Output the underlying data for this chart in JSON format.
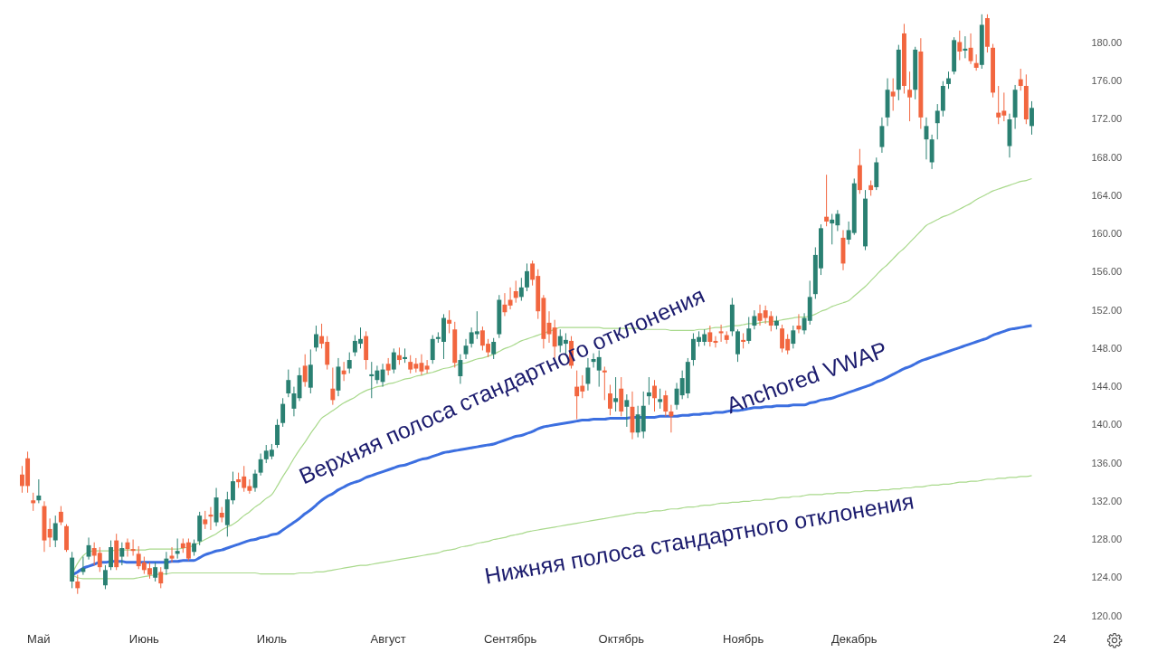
{
  "chart_data": {
    "type": "candlestick",
    "categories": [
      null,
      null,
      null,
      "Май",
      null,
      null,
      null,
      null,
      null,
      null,
      null,
      null,
      null,
      null,
      null,
      null,
      null,
      null,
      null,
      null,
      null,
      null,
      "Июнь",
      null,
      null,
      null,
      null,
      null,
      null,
      null,
      null,
      null,
      null,
      null,
      null,
      null,
      null,
      null,
      null,
      null,
      null,
      null,
      null,
      null,
      null,
      "Июль",
      null,
      null,
      null,
      null,
      null,
      null,
      null,
      null,
      null,
      null,
      null,
      null,
      null,
      null,
      null,
      null,
      null,
      null,
      null,
      null,
      "Август",
      null,
      null,
      null,
      null,
      null,
      null,
      null,
      null,
      null,
      null,
      null,
      null,
      null,
      null,
      null,
      null,
      null,
      null,
      null,
      null,
      null,
      "Сентябрь",
      null,
      null,
      null,
      null,
      null,
      null,
      null,
      null,
      null,
      null,
      null,
      null,
      null,
      null,
      null,
      null,
      null,
      null,
      null,
      "Октябрь",
      null,
      null,
      null,
      null,
      null,
      null,
      null,
      null,
      null,
      null,
      null,
      null,
      null,
      null,
      null,
      null,
      null,
      null,
      null,
      null,
      null,
      "Ноябрь",
      null,
      null,
      null,
      null,
      null,
      null,
      null,
      null,
      null,
      null,
      null,
      null,
      null,
      null,
      null,
      null,
      null,
      null,
      null,
      "Декабрь",
      null,
      null,
      null,
      null,
      null,
      null,
      null,
      null,
      null,
      null,
      null,
      null,
      null,
      null,
      null,
      null,
      null,
      null,
      null,
      null,
      null,
      null,
      null,
      null,
      null,
      null,
      null,
      null,
      null,
      null,
      null,
      null,
      null,
      null,
      null,
      null,
      "24",
      null,
      null,
      null
    ],
    "ohlc": [
      [
        134.8,
        135.7,
        132.9,
        133.6
      ],
      [
        136.5,
        137.2,
        132.9,
        133.6
      ],
      [
        132.1,
        132.9,
        131.0,
        131.8
      ],
      [
        132.1,
        134.3,
        131.8,
        132.6
      ],
      [
        131.5,
        132.0,
        126.7,
        127.9
      ],
      [
        129.1,
        130.2,
        127.2,
        128.2
      ],
      [
        127.9,
        130.5,
        127.2,
        129.7
      ],
      [
        130.9,
        131.5,
        129.5,
        129.8
      ],
      [
        129.4,
        129.6,
        126.7,
        126.9
      ],
      [
        123.6,
        126.7,
        122.9,
        126.1
      ],
      [
        123.6,
        124.3,
        122.3,
        122.9
      ],
      [
        124.6,
        126.2,
        124.3,
        125.0
      ],
      [
        126.2,
        128.2,
        125.9,
        127.4
      ],
      [
        127.1,
        127.7,
        125.3,
        126.3
      ],
      [
        126.6,
        127.2,
        124.6,
        125.1
      ],
      [
        123.2,
        125.3,
        122.8,
        124.8
      ],
      [
        125.1,
        127.9,
        124.8,
        127.2
      ],
      [
        127.9,
        128.6,
        124.8,
        125.1
      ],
      [
        126.2,
        127.7,
        125.3,
        127.1
      ],
      [
        127.7,
        128.1,
        126.2,
        127.0
      ],
      [
        127.0,
        128.0,
        126.3,
        126.8
      ],
      [
        126.5,
        127.3,
        124.9,
        125.2
      ],
      [
        125.6,
        126.2,
        124.4,
        124.8
      ],
      [
        125.0,
        125.6,
        123.9,
        124.3
      ],
      [
        124.0,
        125.6,
        123.6,
        125.1
      ],
      [
        124.6,
        125.1,
        122.9,
        123.4
      ],
      [
        124.9,
        126.7,
        124.3,
        126.0
      ],
      [
        126.3,
        127.2,
        125.6,
        126.0
      ],
      [
        126.5,
        128.1,
        126.0,
        126.8
      ],
      [
        127.6,
        128.1,
        126.6,
        127.1
      ],
      [
        127.7,
        128.1,
        125.8,
        126.0
      ],
      [
        126.7,
        128.0,
        126.3,
        127.6
      ],
      [
        127.8,
        130.9,
        127.4,
        130.5
      ],
      [
        130.1,
        131.0,
        129.1,
        129.6
      ],
      [
        130.6,
        131.4,
        129.0,
        130.4
      ],
      [
        129.8,
        133.4,
        129.4,
        132.4
      ],
      [
        130.8,
        131.4,
        129.8,
        130.3
      ],
      [
        129.5,
        133.0,
        128.3,
        132.2
      ],
      [
        132.1,
        135.1,
        131.7,
        134.1
      ],
      [
        134.3,
        135.0,
        133.4,
        134.0
      ],
      [
        134.6,
        135.7,
        133.0,
        133.4
      ],
      [
        133.6,
        134.3,
        132.8,
        133.1
      ],
      [
        133.4,
        135.3,
        133.0,
        134.9
      ],
      [
        135.0,
        137.0,
        134.7,
        136.4
      ],
      [
        136.4,
        137.9,
        136.0,
        137.3
      ],
      [
        136.7,
        138.0,
        136.4,
        137.4
      ],
      [
        137.9,
        140.6,
        137.6,
        140.0
      ],
      [
        140.2,
        142.8,
        139.8,
        142.2
      ],
      [
        143.3,
        145.8,
        142.9,
        144.7
      ],
      [
        141.7,
        144.0,
        140.9,
        143.3
      ],
      [
        142.8,
        146.0,
        142.5,
        145.2
      ],
      [
        146.2,
        147.4,
        144.0,
        144.5
      ],
      [
        143.9,
        147.9,
        143.3,
        146.3
      ],
      [
        148.1,
        150.4,
        147.7,
        149.5
      ],
      [
        149.3,
        150.6,
        148.0,
        148.5
      ],
      [
        148.7,
        149.3,
        145.8,
        146.3
      ],
      [
        143.8,
        146.0,
        142.1,
        142.6
      ],
      [
        143.6,
        147.0,
        143.0,
        146.1
      ],
      [
        145.7,
        146.6,
        144.6,
        145.3
      ],
      [
        145.9,
        147.6,
        145.4,
        146.8
      ],
      [
        147.6,
        149.4,
        147.2,
        148.8
      ],
      [
        148.5,
        150.2,
        148.0,
        149.0
      ],
      [
        149.3,
        149.8,
        145.8,
        146.8
      ],
      [
        145.1,
        146.6,
        142.8,
        145.3
      ],
      [
        144.7,
        146.2,
        144.3,
        145.7
      ],
      [
        144.5,
        146.4,
        144.0,
        145.8
      ],
      [
        146.4,
        147.0,
        145.2,
        145.7
      ],
      [
        145.8,
        148.0,
        145.4,
        147.6
      ],
      [
        147.3,
        148.1,
        146.3,
        146.8
      ],
      [
        146.9,
        148.0,
        146.5,
        147.1
      ],
      [
        146.6,
        147.3,
        145.4,
        145.8
      ],
      [
        146.4,
        147.0,
        145.5,
        145.9
      ],
      [
        146.5,
        147.4,
        145.2,
        145.6
      ],
      [
        146.2,
        146.8,
        145.4,
        145.8
      ],
      [
        146.8,
        149.4,
        146.4,
        149.0
      ],
      [
        149.0,
        149.7,
        148.6,
        149.2
      ],
      [
        148.7,
        151.6,
        146.9,
        151.2
      ],
      [
        151.0,
        152.0,
        149.6,
        150.6
      ],
      [
        150.0,
        150.8,
        146.0,
        146.5
      ],
      [
        145.1,
        147.4,
        144.3,
        146.8
      ],
      [
        147.4,
        149.0,
        146.9,
        148.3
      ],
      [
        148.5,
        150.2,
        148.1,
        149.7
      ],
      [
        149.5,
        151.9,
        149.0,
        149.8
      ],
      [
        149.9,
        150.3,
        147.8,
        148.3
      ],
      [
        148.5,
        149.0,
        147.1,
        147.6
      ],
      [
        147.4,
        149.1,
        146.9,
        148.7
      ],
      [
        149.5,
        153.6,
        149.1,
        153.1
      ],
      [
        152.6,
        153.8,
        151.4,
        151.8
      ],
      [
        153.1,
        154.4,
        152.1,
        152.5
      ],
      [
        154.0,
        155.1,
        152.8,
        153.3
      ],
      [
        153.4,
        155.4,
        153.0,
        154.4
      ],
      [
        154.4,
        156.9,
        154.0,
        156.1
      ],
      [
        156.9,
        157.2,
        154.6,
        155.2
      ],
      [
        155.6,
        156.3,
        151.1,
        151.9
      ],
      [
        153.3,
        153.6,
        148.0,
        149.0
      ],
      [
        150.7,
        151.9,
        148.6,
        149.5
      ],
      [
        150.2,
        151.0,
        147.0,
        148.2
      ],
      [
        148.3,
        150.0,
        147.6,
        149.3
      ],
      [
        148.5,
        149.6,
        147.4,
        148.9
      ],
      [
        148.8,
        149.3,
        145.9,
        146.2
      ],
      [
        144.0,
        145.7,
        140.6,
        143.0
      ],
      [
        144.1,
        145.2,
        142.8,
        143.5
      ],
      [
        144.3,
        147.0,
        143.6,
        146.0
      ],
      [
        146.6,
        147.5,
        146.0,
        146.9
      ],
      [
        145.7,
        147.8,
        144.0,
        147.1
      ],
      [
        145.7,
        146.1,
        142.6,
        145.5
      ],
      [
        143.3,
        144.2,
        141.0,
        141.7
      ],
      [
        142.4,
        145.0,
        141.4,
        142.8
      ],
      [
        143.8,
        145.0,
        140.9,
        141.4
      ],
      [
        141.9,
        143.2,
        139.8,
        142.6
      ],
      [
        141.9,
        143.5,
        138.5,
        139.2
      ],
      [
        139.2,
        142.0,
        138.7,
        141.1
      ],
      [
        139.3,
        143.5,
        138.6,
        142.0
      ],
      [
        143.0,
        145.0,
        142.1,
        143.4
      ],
      [
        144.1,
        144.7,
        141.4,
        142.8
      ],
      [
        142.4,
        143.8,
        141.7,
        142.7
      ],
      [
        143.1,
        143.6,
        140.9,
        141.4
      ],
      [
        141.4,
        142.1,
        139.2,
        140.9
      ],
      [
        142.1,
        144.4,
        141.6,
        143.8
      ],
      [
        143.1,
        145.7,
        142.7,
        144.9
      ],
      [
        143.3,
        147.0,
        142.8,
        146.6
      ],
      [
        146.8,
        149.6,
        146.2,
        149.0
      ],
      [
        148.7,
        149.8,
        148.2,
        149.2
      ],
      [
        148.7,
        150.0,
        148.3,
        149.5
      ],
      [
        149.7,
        150.4,
        148.2,
        148.7
      ],
      [
        148.8,
        149.3,
        148.1,
        148.6
      ],
      [
        149.8,
        150.5,
        148.7,
        149.6
      ],
      [
        149.4,
        149.8,
        148.5,
        148.9
      ],
      [
        149.8,
        153.3,
        149.3,
        152.6
      ],
      [
        147.4,
        150.0,
        146.6,
        149.8
      ],
      [
        148.9,
        149.6,
        148.0,
        148.7
      ],
      [
        148.8,
        151.3,
        148.5,
        150.1
      ],
      [
        150.4,
        152.0,
        150.0,
        151.4
      ],
      [
        151.7,
        152.6,
        150.4,
        150.9
      ],
      [
        152.0,
        152.5,
        150.6,
        151.2
      ],
      [
        151.4,
        151.9,
        149.8,
        150.4
      ],
      [
        150.4,
        151.4,
        150.0,
        150.9
      ],
      [
        150.1,
        150.5,
        147.6,
        148.0
      ],
      [
        149.0,
        149.5,
        147.4,
        147.8
      ],
      [
        148.5,
        150.4,
        148.0,
        149.9
      ],
      [
        150.4,
        151.6,
        149.6,
        150.0
      ],
      [
        149.9,
        151.7,
        149.5,
        151.2
      ],
      [
        150.9,
        155.1,
        150.5,
        153.4
      ],
      [
        153.7,
        158.6,
        153.2,
        157.8
      ],
      [
        156.4,
        161.0,
        155.7,
        160.6
      ],
      [
        161.8,
        166.2,
        160.8,
        161.3
      ],
      [
        161.1,
        162.1,
        158.9,
        161.5
      ],
      [
        160.9,
        162.5,
        160.3,
        162.1
      ],
      [
        159.6,
        160.4,
        156.2,
        156.9
      ],
      [
        159.4,
        161.3,
        158.9,
        160.4
      ],
      [
        160.1,
        165.8,
        159.9,
        165.3
      ],
      [
        167.2,
        168.9,
        164.2,
        164.6
      ],
      [
        158.7,
        164.6,
        158.3,
        163.7
      ],
      [
        165.1,
        165.6,
        164.0,
        164.6
      ],
      [
        164.9,
        168.0,
        164.6,
        167.5
      ],
      [
        169.1,
        172.2,
        168.5,
        171.3
      ],
      [
        172.2,
        176.3,
        171.3,
        175.1
      ],
      [
        174.9,
        176.3,
        172.9,
        174.4
      ],
      [
        175.1,
        179.8,
        174.0,
        179.3
      ],
      [
        181.0,
        182.0,
        174.7,
        175.5
      ],
      [
        175.1,
        177.0,
        171.8,
        174.3
      ],
      [
        175.1,
        179.6,
        174.1,
        179.3
      ],
      [
        179.1,
        180.5,
        171.0,
        172.2
      ],
      [
        169.9,
        172.2,
        167.8,
        171.3
      ],
      [
        167.5,
        170.4,
        166.8,
        169.9
      ],
      [
        171.6,
        173.6,
        169.9,
        172.9
      ],
      [
        172.9,
        176.0,
        172.3,
        175.5
      ],
      [
        175.7,
        177.0,
        175.2,
        176.3
      ],
      [
        177.0,
        180.6,
        176.7,
        180.3
      ],
      [
        180.1,
        181.3,
        178.2,
        179.1
      ],
      [
        179.2,
        180.7,
        178.4,
        179.4
      ],
      [
        179.5,
        181.0,
        177.8,
        178.1
      ],
      [
        177.9,
        178.8,
        177.1,
        177.4
      ],
      [
        177.7,
        183.0,
        177.3,
        181.9
      ],
      [
        182.6,
        183.0,
        179.0,
        179.6
      ],
      [
        179.5,
        179.9,
        174.3,
        174.8
      ],
      [
        172.7,
        175.5,
        171.5,
        172.2
      ],
      [
        172.9,
        174.8,
        171.8,
        172.4
      ],
      [
        169.2,
        172.6,
        168.0,
        172.0
      ],
      [
        172.2,
        175.6,
        171.0,
        175.1
      ],
      [
        176.2,
        177.3,
        175.0,
        175.5
      ],
      [
        175.5,
        176.7,
        171.5,
        172.0
      ],
      [
        171.3,
        173.9,
        170.4,
        173.2
      ],
      null,
      null,
      null,
      null,
      null,
      null,
      null,
      null
    ],
    "series": [
      {
        "type": "line",
        "name": "Верхняя полоса стандартного отклонения",
        "color": "#a9d98c",
        "values": [
          null,
          null,
          null,
          null,
          null,
          null,
          null,
          null,
          null,
          124.4,
          125.5,
          126.3,
          126.7,
          126.8,
          126.8,
          126.8,
          126.8,
          126.9,
          126.9,
          126.9,
          126.9,
          126.9,
          126.9,
          127.0,
          127.0,
          127.0,
          127.0,
          127.0,
          127.0,
          127.1,
          127.2,
          127.4,
          127.7,
          128.0,
          128.3,
          128.6,
          129.0,
          129.3,
          129.6,
          130.0,
          130.5,
          130.9,
          131.4,
          131.8,
          132.3,
          132.7,
          133.6,
          134.6,
          135.5,
          136.5,
          137.4,
          138.2,
          139.1,
          139.9,
          140.7,
          141.1,
          141.5,
          141.9,
          142.3,
          142.6,
          142.9,
          143.3,
          143.6,
          143.8,
          144.0,
          144.1,
          144.3,
          144.4,
          144.6,
          144.8,
          144.9,
          145.1,
          145.2,
          145.4,
          145.5,
          145.7,
          145.9,
          146.0,
          146.2,
          146.4,
          146.5,
          146.7,
          146.9,
          147.0,
          147.2,
          147.4,
          147.7,
          148.0,
          148.2,
          148.5,
          148.8,
          149.0,
          149.2,
          149.4,
          149.6,
          149.8,
          150.0,
          150.2,
          150.2,
          150.2,
          150.2,
          150.2,
          150.2,
          150.2,
          150.2,
          150.1,
          150.1,
          150.1,
          150.1,
          150.1,
          150.1,
          150.1,
          150.0,
          150.0,
          150.0,
          150.0,
          150.0,
          149.9,
          149.9,
          149.9,
          149.9,
          149.9,
          150.0,
          150.0,
          150.1,
          150.2,
          150.2,
          150.3,
          150.4,
          150.4,
          150.5,
          150.6,
          150.6,
          150.7,
          150.8,
          150.8,
          150.9,
          151.0,
          151.1,
          151.2,
          151.3,
          151.3,
          151.4,
          151.6,
          151.9,
          152.1,
          152.4,
          152.6,
          152.8,
          153.0,
          153.5,
          154.0,
          154.5,
          155.1,
          155.7,
          156.3,
          156.8,
          157.4,
          158.0,
          158.5,
          159.1,
          159.7,
          160.3,
          160.9,
          161.2,
          161.5,
          161.8,
          162.0,
          162.3,
          162.6,
          162.9,
          163.2,
          163.6,
          163.9,
          164.2,
          164.5,
          164.7,
          164.9,
          165.1,
          165.3,
          165.5,
          165.6,
          165.8,
          null,
          null,
          null,
          null,
          null,
          null,
          null,
          null
        ]
      },
      {
        "type": "line",
        "name": "Anchored VWAP",
        "color": "#3c6fe0",
        "values": [
          null,
          null,
          null,
          null,
          null,
          null,
          null,
          null,
          null,
          124.3,
          124.6,
          125.0,
          125.2,
          125.4,
          125.6,
          125.6,
          125.7,
          125.7,
          125.7,
          125.6,
          125.6,
          125.6,
          125.6,
          125.6,
          125.6,
          125.6,
          125.6,
          125.7,
          125.7,
          125.8,
          125.8,
          125.8,
          126.1,
          126.4,
          126.6,
          126.8,
          126.9,
          127.1,
          127.3,
          127.5,
          127.7,
          127.9,
          128.0,
          128.2,
          128.3,
          128.5,
          128.6,
          129.0,
          129.4,
          129.8,
          130.2,
          130.7,
          131.1,
          131.6,
          132.1,
          132.5,
          132.8,
          133.2,
          133.5,
          133.8,
          134.0,
          134.2,
          134.5,
          134.7,
          134.9,
          135.1,
          135.3,
          135.5,
          135.7,
          135.8,
          136.0,
          136.2,
          136.4,
          136.5,
          136.7,
          136.9,
          137.1,
          137.2,
          137.3,
          137.4,
          137.5,
          137.6,
          137.7,
          137.8,
          137.9,
          138.0,
          138.2,
          138.4,
          138.6,
          138.8,
          138.9,
          139.1,
          139.3,
          139.6,
          139.8,
          139.9,
          140.0,
          140.1,
          140.2,
          140.3,
          140.4,
          140.5,
          140.5,
          140.6,
          140.6,
          140.6,
          140.7,
          140.7,
          140.7,
          140.7,
          140.8,
          140.8,
          140.8,
          140.8,
          140.8,
          140.9,
          140.9,
          140.9,
          140.9,
          141.0,
          141.0,
          141.1,
          141.1,
          141.2,
          141.2,
          141.3,
          141.3,
          141.4,
          141.5,
          141.5,
          141.6,
          141.7,
          141.8,
          141.8,
          141.9,
          141.9,
          142.0,
          142.0,
          142.0,
          142.1,
          142.1,
          142.1,
          142.3,
          142.4,
          142.6,
          142.7,
          142.8,
          143.0,
          143.2,
          143.4,
          143.6,
          143.8,
          144.0,
          144.2,
          144.5,
          144.7,
          145.0,
          145.3,
          145.6,
          145.9,
          146.1,
          146.4,
          146.7,
          146.9,
          147.1,
          147.3,
          147.5,
          147.7,
          147.9,
          148.1,
          148.3,
          148.5,
          148.7,
          148.9,
          149.1,
          149.4,
          149.6,
          149.8,
          150.0,
          150.1,
          150.2,
          150.3,
          150.4,
          null,
          null,
          null,
          null,
          null,
          null,
          null,
          null
        ]
      },
      {
        "type": "line",
        "name": "Нижняя полоса стандартного отклонения",
        "color": "#a9d98c",
        "values": [
          null,
          null,
          null,
          null,
          null,
          null,
          null,
          null,
          null,
          124.3,
          124.0,
          123.9,
          123.9,
          123.9,
          123.9,
          123.9,
          123.9,
          123.9,
          123.9,
          123.9,
          123.9,
          124.0,
          124.1,
          124.2,
          124.3,
          124.4,
          124.4,
          124.5,
          124.5,
          124.5,
          124.5,
          124.5,
          124.5,
          124.5,
          124.5,
          124.5,
          124.5,
          124.5,
          124.5,
          124.5,
          124.5,
          124.5,
          124.5,
          124.4,
          124.4,
          124.4,
          124.4,
          124.4,
          124.4,
          124.4,
          124.5,
          124.5,
          124.5,
          124.6,
          124.6,
          124.7,
          124.8,
          124.9,
          125.0,
          125.1,
          125.2,
          125.3,
          125.3,
          125.4,
          125.5,
          125.6,
          125.7,
          125.8,
          125.9,
          126.0,
          126.1,
          126.2,
          126.3,
          126.4,
          126.5,
          126.6,
          126.8,
          126.9,
          127.0,
          127.2,
          127.3,
          127.4,
          127.6,
          127.7,
          127.8,
          128.0,
          128.1,
          128.2,
          128.4,
          128.5,
          128.6,
          128.8,
          128.9,
          129.0,
          129.1,
          129.2,
          129.3,
          129.4,
          129.5,
          129.6,
          129.7,
          129.8,
          129.9,
          130.0,
          130.1,
          130.2,
          130.3,
          130.4,
          130.5,
          130.6,
          130.7,
          130.8,
          130.8,
          130.9,
          131.0,
          131.0,
          131.1,
          131.2,
          131.2,
          131.3,
          131.4,
          131.4,
          131.5,
          131.6,
          131.6,
          131.7,
          131.8,
          131.8,
          131.9,
          131.9,
          132.0,
          132.0,
          132.1,
          132.1,
          132.2,
          132.2,
          132.3,
          132.4,
          132.4,
          132.5,
          132.5,
          132.6,
          132.7,
          132.7,
          132.7,
          132.8,
          132.8,
          132.9,
          132.9,
          132.9,
          133.0,
          133.0,
          133.1,
          133.1,
          133.1,
          133.2,
          133.2,
          133.3,
          133.3,
          133.4,
          133.4,
          133.5,
          133.5,
          133.6,
          133.7,
          133.7,
          133.8,
          133.8,
          133.9,
          134.0,
          134.0,
          134.1,
          134.1,
          134.2,
          134.3,
          134.3,
          134.4,
          134.4,
          134.5,
          134.5,
          134.6,
          134.6,
          134.7,
          null,
          null,
          null,
          null,
          null,
          null,
          null,
          null
        ]
      }
    ],
    "ylim": [
      120,
      184.5
    ],
    "yticks": [
      {
        "value": 120,
        "label": "120.00"
      },
      {
        "value": 124,
        "label": "124.00"
      },
      {
        "value": 128,
        "label": "128.00"
      },
      {
        "value": 132,
        "label": "132.00"
      },
      {
        "value": 136,
        "label": "136.00"
      },
      {
        "value": 140,
        "label": "140.00"
      },
      {
        "value": 144,
        "label": "144.00"
      },
      {
        "value": 148,
        "label": "148.00"
      },
      {
        "value": 152,
        "label": "152.00"
      },
      {
        "value": 156,
        "label": "156.00"
      },
      {
        "value": 160,
        "label": "160.00"
      },
      {
        "value": 164,
        "label": "164.00"
      },
      {
        "value": 168,
        "label": "168.00"
      },
      {
        "value": 172,
        "label": "172.00"
      },
      {
        "value": 176,
        "label": "176.00"
      },
      {
        "value": 180,
        "label": "180.00"
      }
    ]
  }
}
